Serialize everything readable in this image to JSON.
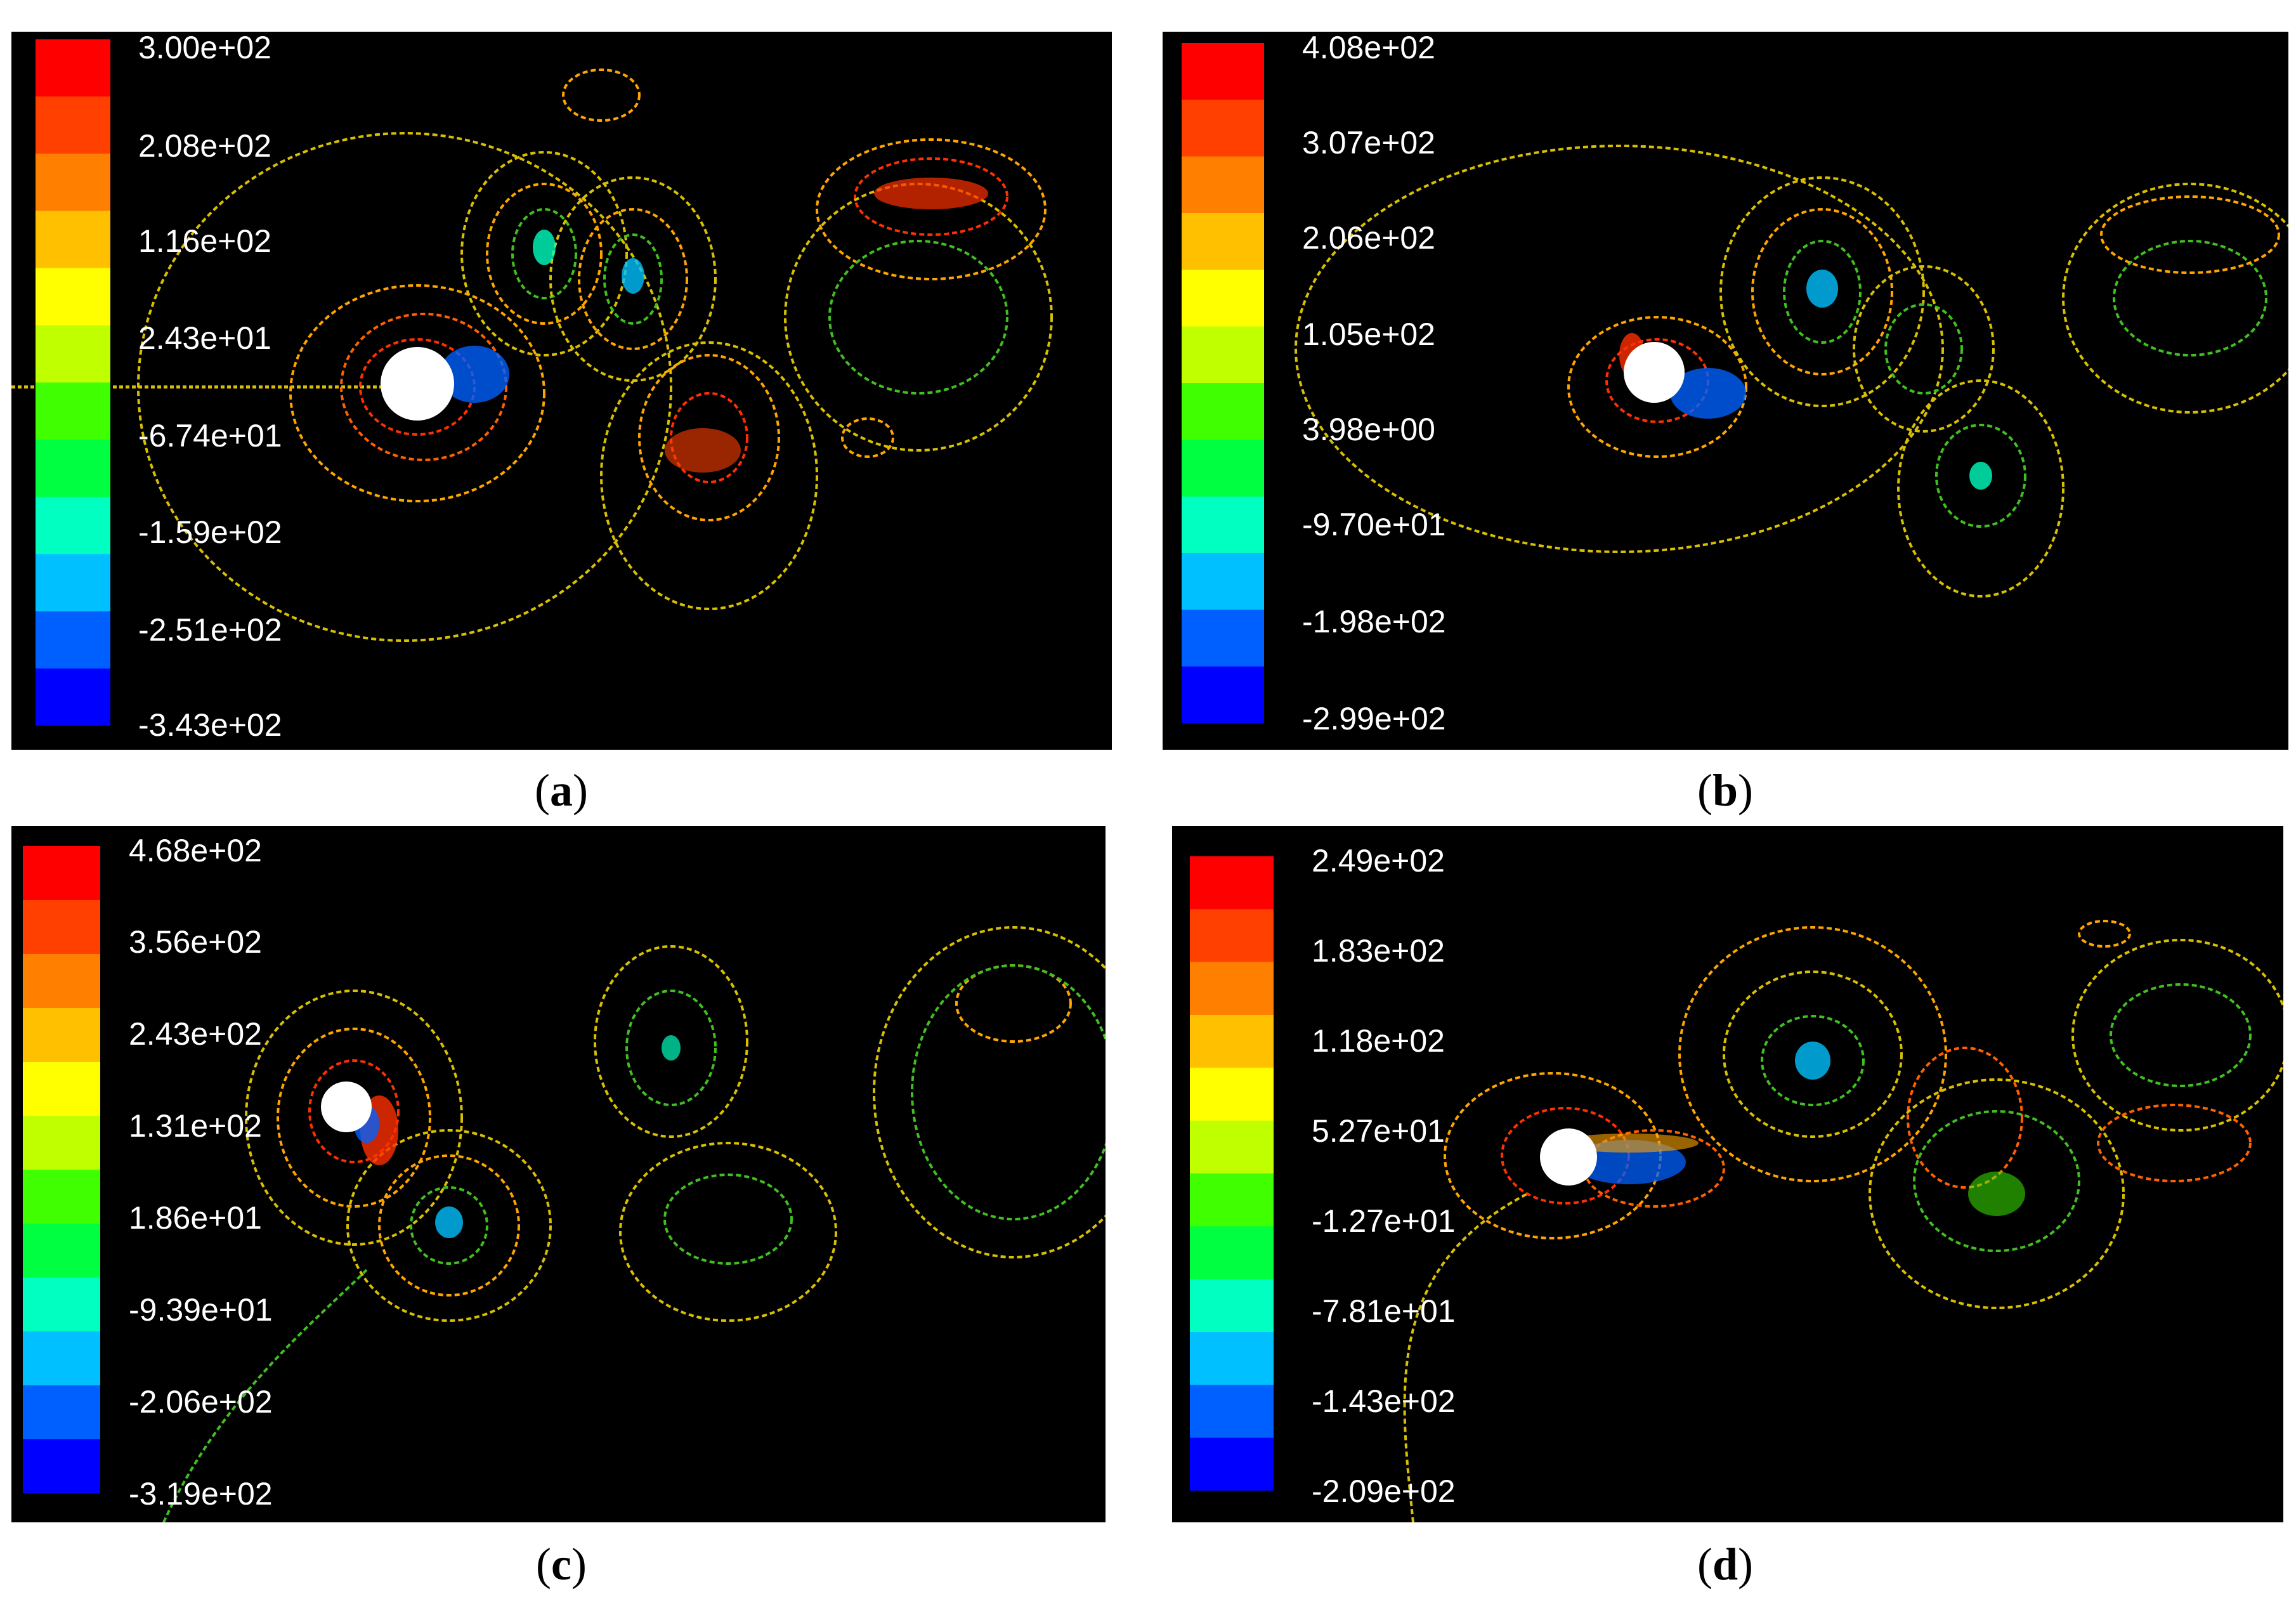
{
  "panels": [
    {
      "id": "a",
      "caption_letter": "a",
      "colorbar_ticks": [
        "3.00e+02",
        "2.08e+02",
        "1.16e+02",
        "2.43e+01",
        "-6.74e+01",
        "-1.59e+02",
        "-2.51e+02",
        "-3.43e+02"
      ]
    },
    {
      "id": "b",
      "caption_letter": "b",
      "colorbar_ticks": [
        "4.08e+02",
        "3.07e+02",
        "2.06e+02",
        "1.05e+02",
        "3.98e+00",
        "-9.70e+01",
        "-1.98e+02",
        "-2.99e+02"
      ]
    },
    {
      "id": "c",
      "caption_letter": "c",
      "colorbar_ticks": [
        "4.68e+02",
        "3.56e+02",
        "2.43e+02",
        "1.31e+02",
        "1.86e+01",
        "-9.39e+01",
        "-2.06e+02",
        "-3.19e+02"
      ]
    },
    {
      "id": "d",
      "caption_letter": "d",
      "colorbar_ticks": [
        "2.49e+02",
        "1.83e+02",
        "1.18e+02",
        "5.27e+01",
        "-1.27e+01",
        "-7.81e+01",
        "-1.43e+02",
        "-2.09e+02"
      ]
    }
  ],
  "colormap": [
    "#0000ff",
    "#0060ff",
    "#00c0ff",
    "#00ffc0",
    "#00ff40",
    "#40ff00",
    "#c0ff00",
    "#ffff00",
    "#ffc000",
    "#ff8000",
    "#ff4000",
    "#ff0000"
  ],
  "contour_colors": {
    "warm": "#ffa500",
    "neutral": "#d8c000",
    "cool": "#40c020",
    "hot": "#ff3000",
    "cold": "#00d0ff"
  }
}
